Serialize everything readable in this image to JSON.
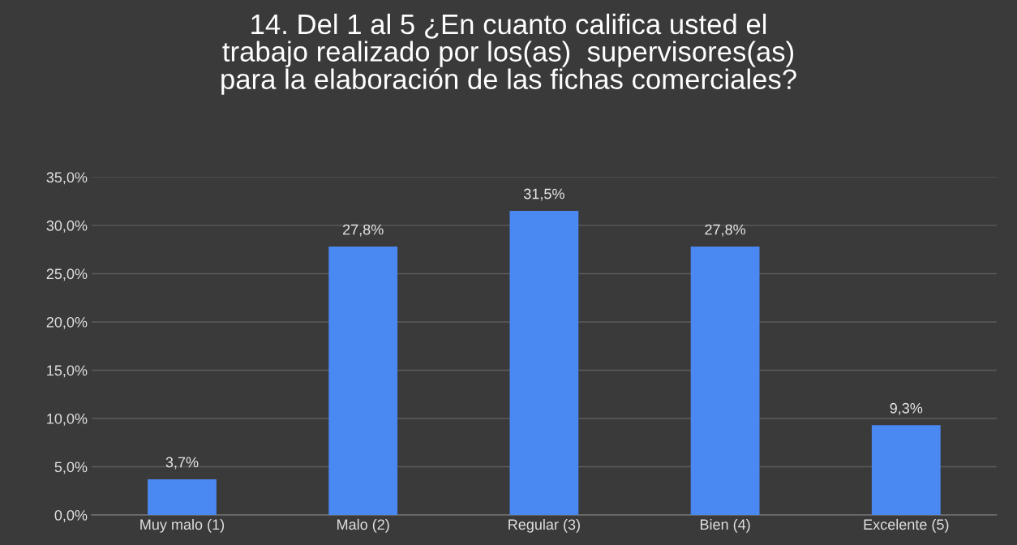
{
  "chart_data": {
    "type": "bar",
    "title": "14. Del 1 al 5 ¿En cuanto califica usted el\ntrabajo realizado por los(as)  supervisores(as)\npara la elaboración de las fichas comerciales?",
    "categories": [
      "Muy malo (1)",
      "Malo (2)",
      "Regular (3)",
      "Bien (4)",
      "Excelente (5)"
    ],
    "values": [
      3.7,
      27.8,
      31.5,
      27.8,
      9.3
    ],
    "value_labels": [
      "3,7%",
      "27,8%",
      "31,5%",
      "27,8%",
      "9,3%"
    ],
    "color": "#4a88f2",
    "ylim": [
      0,
      35
    ],
    "yticks": [
      {
        "value": 0,
        "label": "0,0%"
      },
      {
        "value": 5,
        "label": "5,0%"
      },
      {
        "value": 10,
        "label": "10,0%"
      },
      {
        "value": 15,
        "label": "15,0%"
      },
      {
        "value": 20,
        "label": "20,0%"
      },
      {
        "value": 25,
        "label": "25,0%"
      },
      {
        "value": 30,
        "label": "30,0%"
      },
      {
        "value": 35,
        "label": "35,0%"
      }
    ],
    "grid": "y",
    "legend": false
  }
}
